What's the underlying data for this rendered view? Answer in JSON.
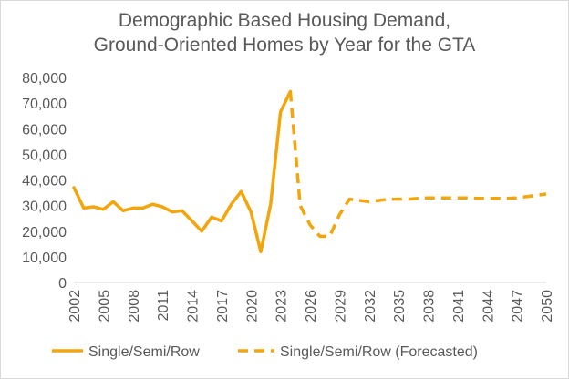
{
  "chart_data": {
    "type": "line",
    "title_lines": [
      "Demographic Based Housing Demand,",
      "Ground-Oriented Homes by Year for the GTA"
    ],
    "xlabel": "",
    "ylabel": "",
    "ylim": [
      0,
      80000
    ],
    "y_ticks": [
      "0",
      "10,000",
      "20,000",
      "30,000",
      "40,000",
      "50,000",
      "60,000",
      "70,000",
      "80,000"
    ],
    "x_range": [
      2002,
      2050
    ],
    "x_ticks": [
      "2002",
      "2005",
      "2008",
      "2011",
      "2014",
      "2017",
      "2020",
      "2023",
      "2026",
      "2029",
      "2032",
      "2035",
      "2038",
      "2041",
      "2044",
      "2047",
      "2050"
    ],
    "grid": false,
    "legend_position": "bottom",
    "series": [
      {
        "name": "Single/Semi/Row",
        "color": "#f2a60c",
        "style": "solid",
        "x": [
          2002,
          2003,
          2004,
          2005,
          2006,
          2007,
          2008,
          2009,
          2010,
          2011,
          2012,
          2013,
          2014,
          2015,
          2016,
          2017,
          2018,
          2019,
          2020,
          2021,
          2022,
          2023,
          2024
        ],
        "values": [
          37000,
          29000,
          29500,
          28500,
          31500,
          28000,
          29000,
          29000,
          30500,
          29500,
          27500,
          28000,
          24000,
          20000,
          25500,
          24000,
          30500,
          35500,
          27500,
          12000,
          30500,
          66500,
          74500
        ]
      },
      {
        "name": "Single/Semi/Row (Forecasted)",
        "color": "#f2a60c",
        "style": "dashed",
        "x": [
          2024,
          2025,
          2026,
          2027,
          2028,
          2029,
          2030,
          2031,
          2032,
          2033,
          2034,
          2035,
          2036,
          2037,
          2038,
          2039,
          2040,
          2041,
          2042,
          2043,
          2044,
          2045,
          2046,
          2047,
          2048,
          2049,
          2050
        ],
        "values": [
          74500,
          30000,
          22500,
          18000,
          18000,
          26500,
          32500,
          32000,
          31500,
          32000,
          32500,
          32500,
          32500,
          32800,
          33000,
          33000,
          33000,
          33000,
          33000,
          32800,
          32800,
          32800,
          32800,
          33000,
          33500,
          34000,
          34500
        ]
      }
    ]
  }
}
